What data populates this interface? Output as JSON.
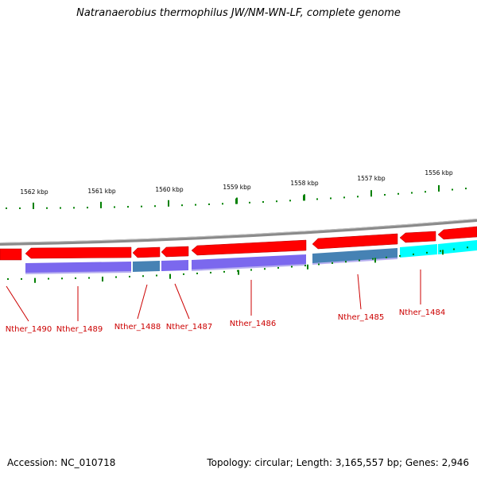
{
  "title": "Natranaerobius thermophilus JW/NM-WN-LF, complete genome",
  "footer": {
    "accession": "Accession: NC_010718",
    "topology": "Topology: circular; Length: 3,165,557 bp; Genes: 2,946"
  },
  "colors": {
    "forward_cds": "#ff0000",
    "reverse_cds": "#ff0000",
    "cog_purple": "#7b68ee",
    "cog_steelblue": "#4682b4",
    "cog_cyan": "#00ffff",
    "ticks": "#008000",
    "backbone": "#888888",
    "label": "#cc0000"
  },
  "kbp_ticks": [
    {
      "label": "1562 kbp",
      "kbp": 1562
    },
    {
      "label": "1561 kbp",
      "kbp": 1561
    },
    {
      "label": "1560 kbp",
      "kbp": 1560
    },
    {
      "label": "1559 kbp",
      "kbp": 1559
    },
    {
      "label": "1558 kbp",
      "kbp": 1558
    },
    {
      "label": "1557 kbp",
      "kbp": 1557
    },
    {
      "label": "1556 kbp",
      "kbp": 1556
    }
  ],
  "genes": [
    {
      "name": "Nther_1490"
    },
    {
      "name": "Nther_1489"
    },
    {
      "name": "Nther_1488"
    },
    {
      "name": "Nther_1487"
    },
    {
      "name": "Nther_1486"
    },
    {
      "name": "Nther_1485"
    },
    {
      "name": "Nther_1484"
    }
  ]
}
